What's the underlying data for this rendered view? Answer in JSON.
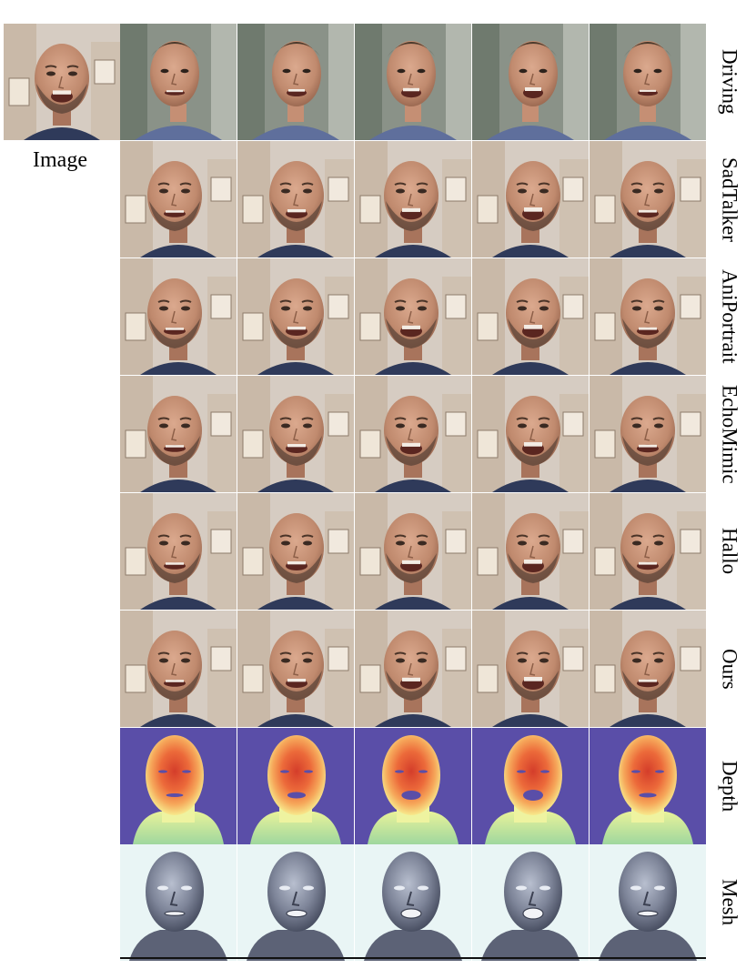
{
  "figure": {
    "source_label": "Image",
    "columns": 5,
    "rows": [
      {
        "id": "driving",
        "label": "Driving",
        "kind": "driving"
      },
      {
        "id": "sadtalker",
        "label": "SadTalker",
        "kind": "photo"
      },
      {
        "id": "aniportrait",
        "label": "AniPortrait",
        "kind": "photo"
      },
      {
        "id": "echomimic",
        "label": "EchoMimic",
        "kind": "photo"
      },
      {
        "id": "hallo",
        "label": "Hallo",
        "kind": "photo"
      },
      {
        "id": "ours",
        "label": "Ours",
        "kind": "photo"
      },
      {
        "id": "depth",
        "label": "Depth",
        "kind": "depth"
      },
      {
        "id": "mesh",
        "label": "Mesh",
        "kind": "mesh"
      }
    ]
  },
  "colors": {
    "depth_background": "#5a4ea8",
    "mesh_background": "#e9f5f5",
    "driving_background": "#8a9288",
    "photo_background": "#d6ccc2",
    "skin": "#c79277",
    "beard": "#5e463a",
    "shirt": "#2f3a5a"
  }
}
